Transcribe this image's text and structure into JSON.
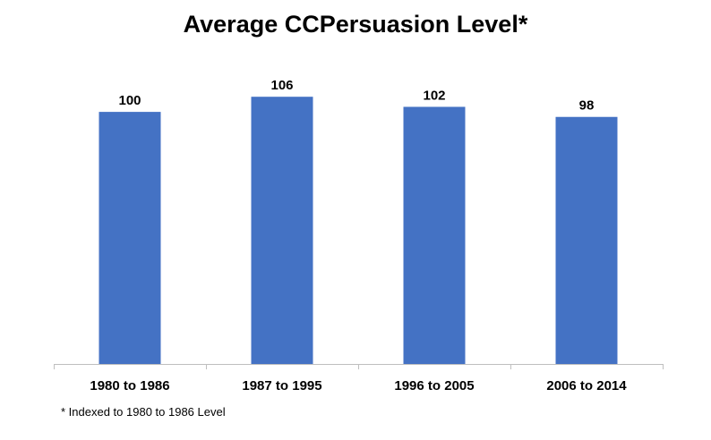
{
  "chart_data": {
    "type": "bar",
    "title": "Average CCPersuasion Level*",
    "categories": [
      "1980 to 1986",
      "1987 to 1995",
      "1996 to 2005",
      "2006 to 2014"
    ],
    "values": [
      100,
      106,
      102,
      98
    ],
    "data_labels": [
      "100",
      "106",
      "102",
      "98"
    ],
    "xlabel": "",
    "ylabel": "",
    "ylim": [
      0,
      116
    ],
    "grid": false,
    "legend": "none",
    "bar_color": "#4472C4",
    "axis_color": "#BFBFBF",
    "footnote": "* Indexed to 1980 to 1986 Level"
  }
}
